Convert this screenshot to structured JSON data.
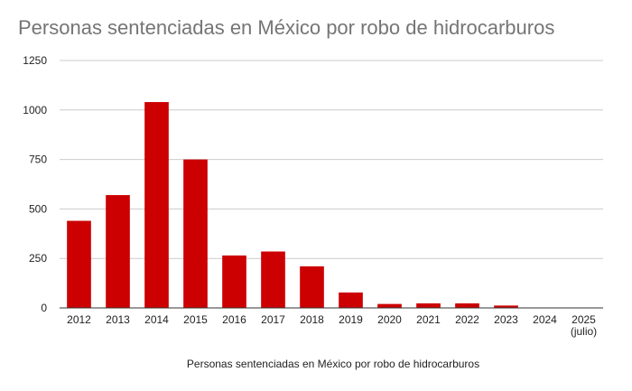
{
  "chart_data": {
    "type": "bar",
    "title": "Personas sentenciadas en México por robo de hidrocarburos",
    "xlabel": "Personas sentenciadas en México por robo de hidrocarburos",
    "ylabel": "",
    "categories": [
      "2012",
      "2013",
      "2014",
      "2015",
      "2016",
      "2017",
      "2018",
      "2019",
      "2020",
      "2021",
      "2022",
      "2023",
      "2024",
      "2025 (julio)"
    ],
    "category_lines": [
      [
        "2012"
      ],
      [
        "2013"
      ],
      [
        "2014"
      ],
      [
        "2015"
      ],
      [
        "2016"
      ],
      [
        "2017"
      ],
      [
        "2018"
      ],
      [
        "2019"
      ],
      [
        "2020"
      ],
      [
        "2021"
      ],
      [
        "2022"
      ],
      [
        "2023"
      ],
      [
        "2024"
      ],
      [
        "2025",
        "(julio)"
      ]
    ],
    "values": [
      440,
      570,
      1040,
      750,
      265,
      285,
      210,
      78,
      20,
      23,
      23,
      12,
      0,
      0
    ],
    "ylim": [
      0,
      1250
    ],
    "yticks": [
      0,
      250,
      500,
      750,
      1000,
      1250
    ],
    "grid": true,
    "bar_color": "#cc0000",
    "grid_color": "#cccccc",
    "baseline_color": "#333333"
  }
}
